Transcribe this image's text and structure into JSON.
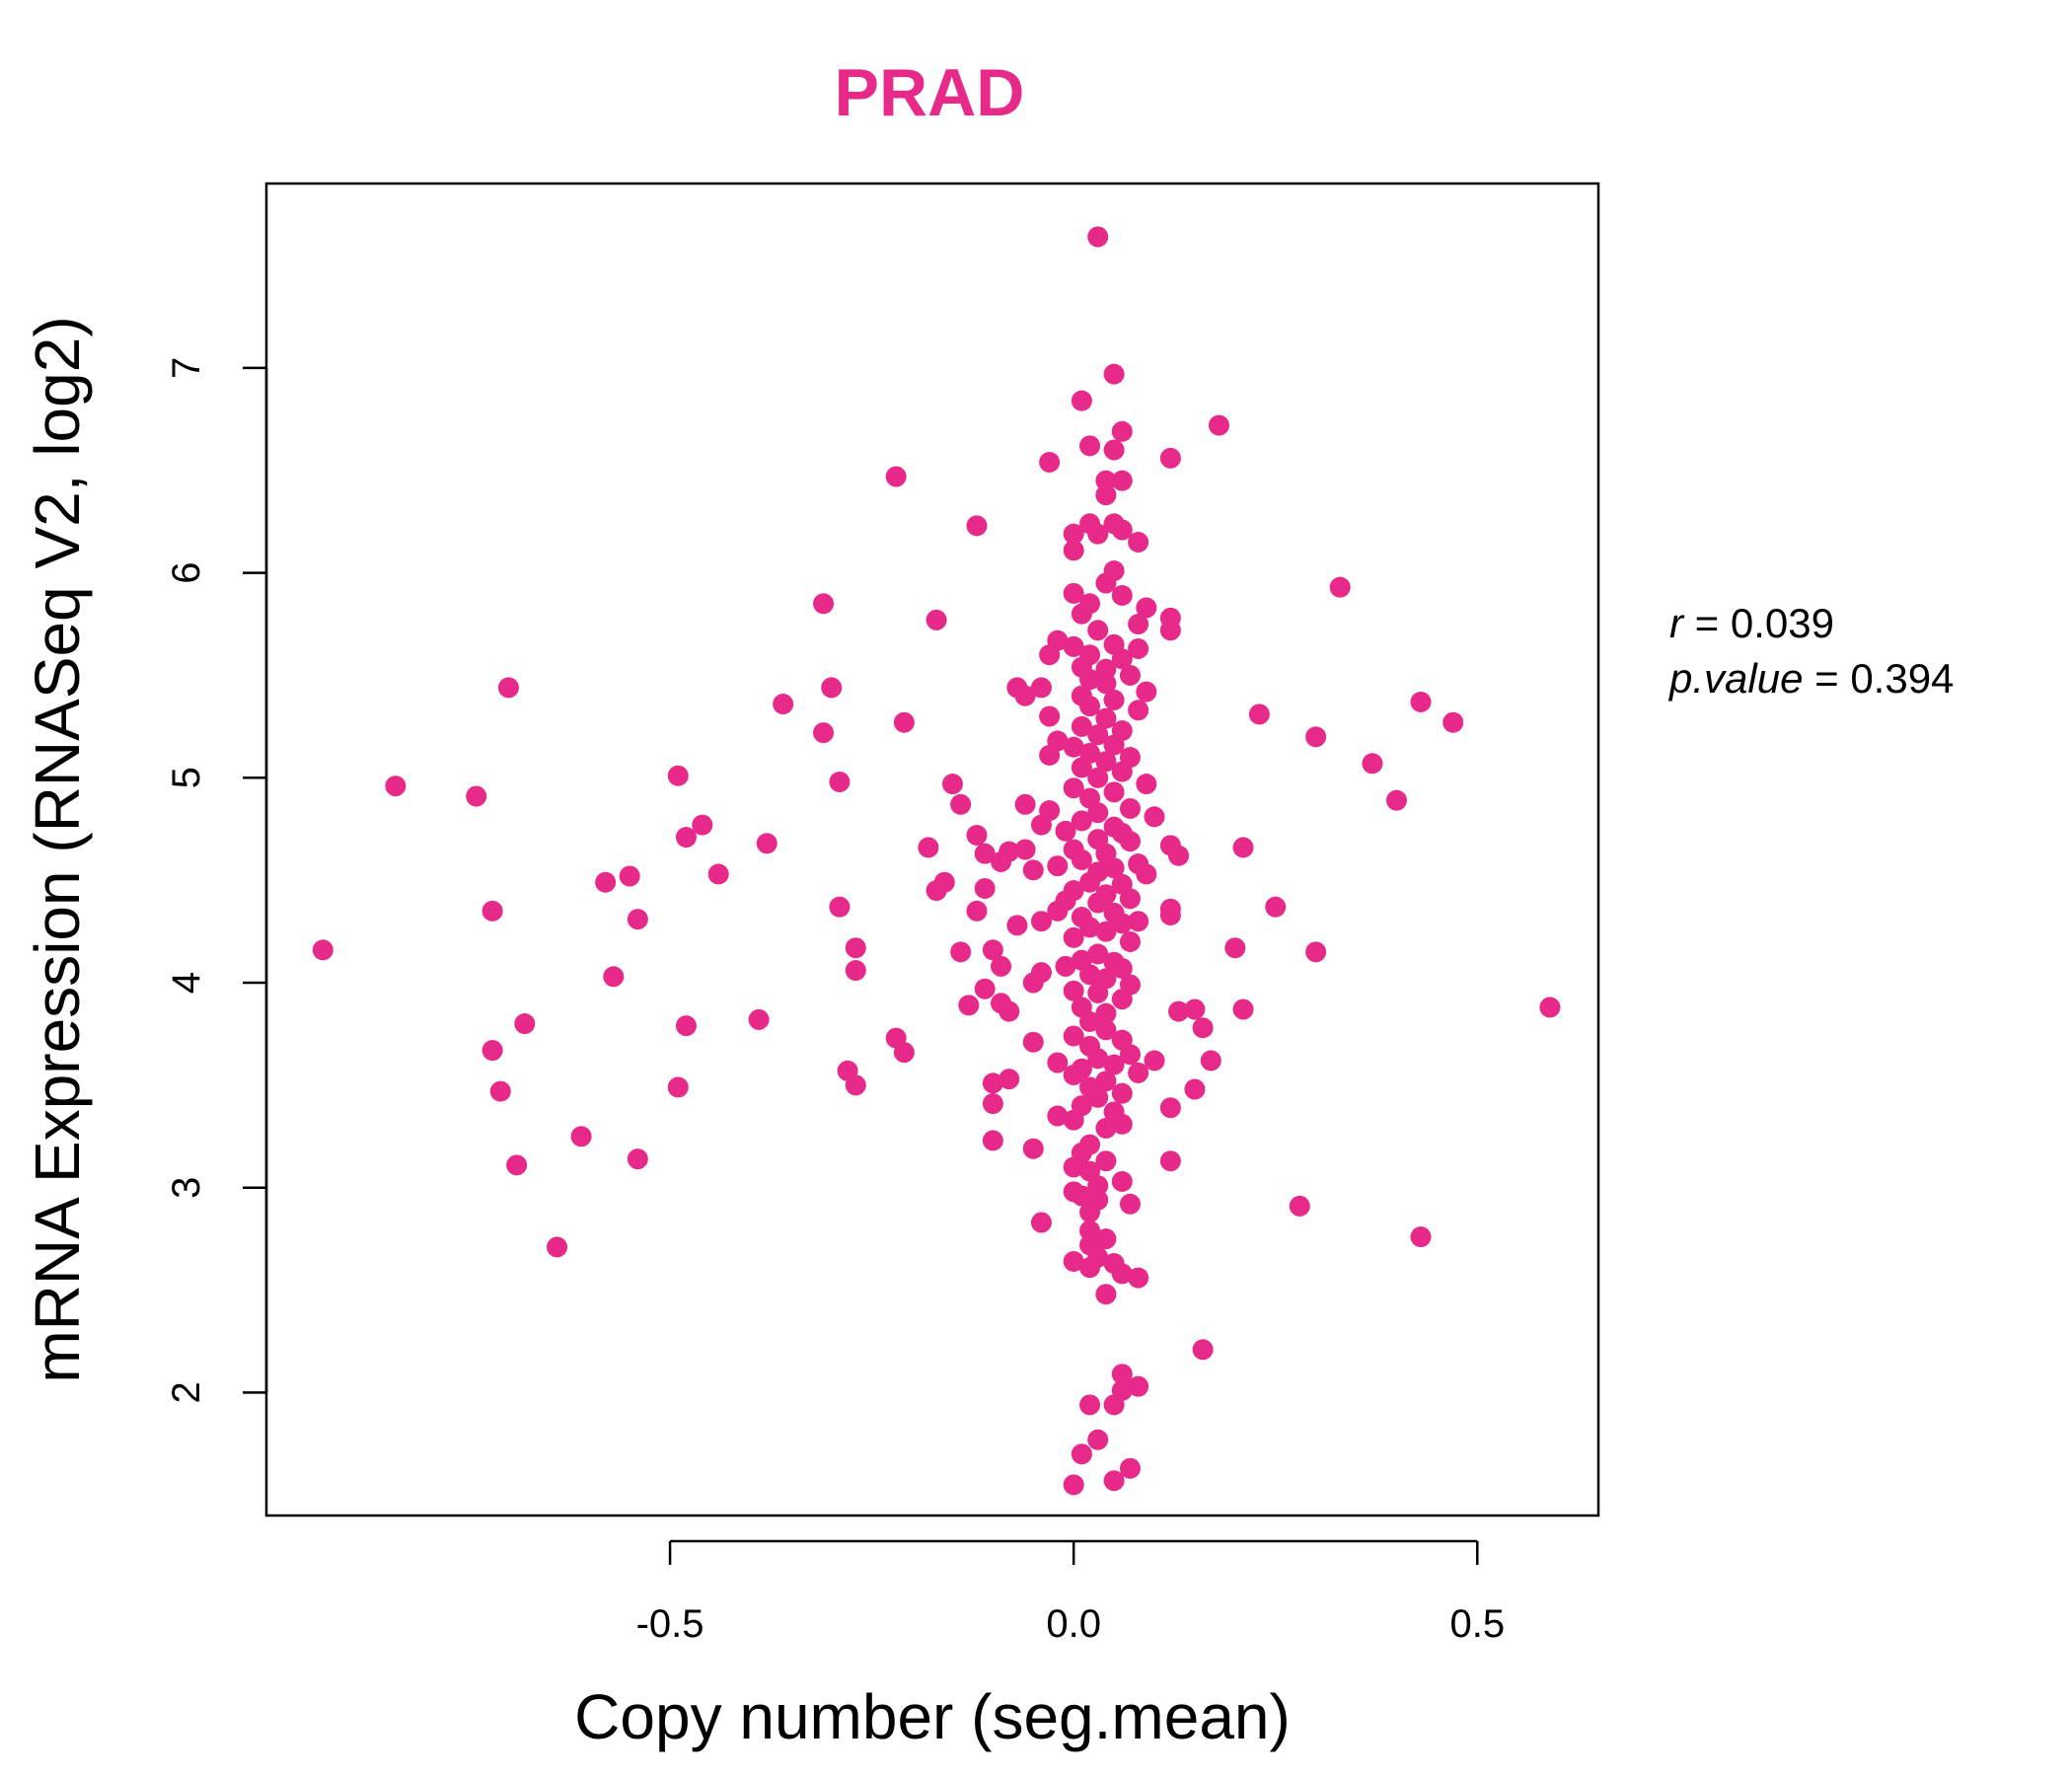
{
  "chart_data": {
    "type": "scatter",
    "title": "PRAD",
    "xlabel": "Copy number (seg.mean)",
    "ylabel": "mRNA Expression (RNASeq V2, log2)",
    "xlim": [
      -1.0,
      0.65
    ],
    "ylim": [
      1.4,
      7.9
    ],
    "x_ticks": [
      -0.5,
      0.0,
      0.5
    ],
    "x_tick_labels": [
      "-0.5",
      "0.0",
      "0.5"
    ],
    "y_ticks": [
      2,
      3,
      4,
      5,
      6,
      7
    ],
    "y_tick_labels": [
      "2",
      "3",
      "4",
      "5",
      "6",
      "7"
    ],
    "grid": false,
    "point_color": "#E7298A",
    "stats": {
      "r_label": "r",
      "r_value": "0.039",
      "p_label": "p.value",
      "p_value": "0.394"
    },
    "points": [
      {
        "x": 0.03,
        "y": 7.64
      },
      {
        "x": 0.05,
        "y": 6.97
      },
      {
        "x": 0.01,
        "y": 6.84
      },
      {
        "x": 0.06,
        "y": 6.69
      },
      {
        "x": 0.18,
        "y": 6.72
      },
      {
        "x": 0.02,
        "y": 6.62
      },
      {
        "x": 0.05,
        "y": 6.6
      },
      {
        "x": 0.12,
        "y": 6.56
      },
      {
        "x": -0.03,
        "y": 6.54
      },
      {
        "x": 0.04,
        "y": 6.45
      },
      {
        "x": 0.06,
        "y": 6.45
      },
      {
        "x": -0.22,
        "y": 6.47
      },
      {
        "x": 0.04,
        "y": 6.38
      },
      {
        "x": -0.12,
        "y": 6.23
      },
      {
        "x": 0.02,
        "y": 6.24
      },
      {
        "x": 0.05,
        "y": 6.24
      },
      {
        "x": 0.0,
        "y": 6.19
      },
      {
        "x": 0.03,
        "y": 6.19
      },
      {
        "x": 0.06,
        "y": 6.21
      },
      {
        "x": 0.08,
        "y": 6.15
      },
      {
        "x": 0.0,
        "y": 6.11
      },
      {
        "x": 0.05,
        "y": 6.01
      },
      {
        "x": 0.04,
        "y": 5.95
      },
      {
        "x": 0.33,
        "y": 5.93
      },
      {
        "x": 0.0,
        "y": 5.9
      },
      {
        "x": 0.06,
        "y": 5.89
      },
      {
        "x": 0.02,
        "y": 5.85
      },
      {
        "x": 0.09,
        "y": 5.83
      },
      {
        "x": -0.31,
        "y": 5.85
      },
      {
        "x": 0.01,
        "y": 5.8
      },
      {
        "x": -0.17,
        "y": 5.77
      },
      {
        "x": 0.12,
        "y": 5.78
      },
      {
        "x": 0.08,
        "y": 5.75
      },
      {
        "x": 0.03,
        "y": 5.72
      },
      {
        "x": 0.12,
        "y": 5.72
      },
      {
        "x": -0.02,
        "y": 5.67
      },
      {
        "x": 0.05,
        "y": 5.65
      },
      {
        "x": 0.0,
        "y": 5.64
      },
      {
        "x": 0.08,
        "y": 5.63
      },
      {
        "x": -0.03,
        "y": 5.6
      },
      {
        "x": 0.02,
        "y": 5.6
      },
      {
        "x": 0.06,
        "y": 5.58
      },
      {
        "x": 0.01,
        "y": 5.54
      },
      {
        "x": 0.04,
        "y": 5.53
      },
      {
        "x": 0.07,
        "y": 5.5
      },
      {
        "x": 0.02,
        "y": 5.48
      },
      {
        "x": 0.04,
        "y": 5.46
      },
      {
        "x": -0.07,
        "y": 5.44
      },
      {
        "x": -0.3,
        "y": 5.44
      },
      {
        "x": -0.7,
        "y": 5.44
      },
      {
        "x": -0.04,
        "y": 5.44
      },
      {
        "x": 0.09,
        "y": 5.42
      },
      {
        "x": -0.06,
        "y": 5.4
      },
      {
        "x": 0.01,
        "y": 5.4
      },
      {
        "x": 0.05,
        "y": 5.38
      },
      {
        "x": 0.43,
        "y": 5.37
      },
      {
        "x": -0.36,
        "y": 5.36
      },
      {
        "x": 0.02,
        "y": 5.35
      },
      {
        "x": 0.08,
        "y": 5.33
      },
      {
        "x": 0.23,
        "y": 5.31
      },
      {
        "x": -0.03,
        "y": 5.3
      },
      {
        "x": 0.04,
        "y": 5.29
      },
      {
        "x": 0.47,
        "y": 5.27
      },
      {
        "x": -0.21,
        "y": 5.27
      },
      {
        "x": 0.01,
        "y": 5.25
      },
      {
        "x": 0.06,
        "y": 5.23
      },
      {
        "x": -0.31,
        "y": 5.22
      },
      {
        "x": 0.03,
        "y": 5.21
      },
      {
        "x": 0.3,
        "y": 5.2
      },
      {
        "x": -0.02,
        "y": 5.18
      },
      {
        "x": 0.05,
        "y": 5.16
      },
      {
        "x": 0.0,
        "y": 5.15
      },
      {
        "x": 0.02,
        "y": 5.12
      },
      {
        "x": -0.03,
        "y": 5.11
      },
      {
        "x": 0.07,
        "y": 5.1
      },
      {
        "x": 0.04,
        "y": 5.08
      },
      {
        "x": 0.37,
        "y": 5.07
      },
      {
        "x": 0.01,
        "y": 5.05
      },
      {
        "x": 0.06,
        "y": 5.03
      },
      {
        "x": -0.49,
        "y": 5.01
      },
      {
        "x": 0.03,
        "y": 5.0
      },
      {
        "x": -0.29,
        "y": 4.98
      },
      {
        "x": 0.09,
        "y": 4.97
      },
      {
        "x": -0.15,
        "y": 4.97
      },
      {
        "x": -0.84,
        "y": 4.96
      },
      {
        "x": 0.0,
        "y": 4.95
      },
      {
        "x": 0.05,
        "y": 4.93
      },
      {
        "x": -0.74,
        "y": 4.91
      },
      {
        "x": 0.4,
        "y": 4.89
      },
      {
        "x": 0.02,
        "y": 4.9
      },
      {
        "x": -0.14,
        "y": 4.87
      },
      {
        "x": -0.06,
        "y": 4.87
      },
      {
        "x": 0.07,
        "y": 4.85
      },
      {
        "x": -0.03,
        "y": 4.84
      },
      {
        "x": 0.03,
        "y": 4.83
      },
      {
        "x": 0.1,
        "y": 4.81
      },
      {
        "x": 0.01,
        "y": 4.79
      },
      {
        "x": -0.46,
        "y": 4.77
      },
      {
        "x": -0.04,
        "y": 4.77
      },
      {
        "x": 0.05,
        "y": 4.76
      },
      {
        "x": -0.01,
        "y": 4.74
      },
      {
        "x": 0.06,
        "y": 4.73
      },
      {
        "x": -0.12,
        "y": 4.72
      },
      {
        "x": -0.48,
        "y": 4.71
      },
      {
        "x": 0.03,
        "y": 4.7
      },
      {
        "x": 0.07,
        "y": 4.69
      },
      {
        "x": -0.38,
        "y": 4.68
      },
      {
        "x": 0.12,
        "y": 4.67
      },
      {
        "x": 0.21,
        "y": 4.66
      },
      {
        "x": -0.18,
        "y": 4.66
      },
      {
        "x": -0.06,
        "y": 4.65
      },
      {
        "x": 0.0,
        "y": 4.65
      },
      {
        "x": -0.08,
        "y": 4.64
      },
      {
        "x": 0.04,
        "y": 4.63
      },
      {
        "x": -0.11,
        "y": 4.63
      },
      {
        "x": 0.13,
        "y": 4.62
      },
      {
        "x": 0.01,
        "y": 4.6
      },
      {
        "x": -0.09,
        "y": 4.59
      },
      {
        "x": 0.08,
        "y": 4.58
      },
      {
        "x": -0.02,
        "y": 4.57
      },
      {
        "x": 0.05,
        "y": 4.56
      },
      {
        "x": -0.05,
        "y": 4.55
      },
      {
        "x": 0.03,
        "y": 4.54
      },
      {
        "x": -0.44,
        "y": 4.53
      },
      {
        "x": 0.09,
        "y": 4.53
      },
      {
        "x": -0.55,
        "y": 4.52
      },
      {
        "x": -0.16,
        "y": 4.49
      },
      {
        "x": -0.58,
        "y": 4.49
      },
      {
        "x": 0.02,
        "y": 4.49
      },
      {
        "x": 0.06,
        "y": 4.48
      },
      {
        "x": -0.11,
        "y": 4.46
      },
      {
        "x": -0.17,
        "y": 4.45
      },
      {
        "x": 0.0,
        "y": 4.45
      },
      {
        "x": 0.04,
        "y": 4.43
      },
      {
        "x": 0.07,
        "y": 4.41
      },
      {
        "x": -0.01,
        "y": 4.4
      },
      {
        "x": 0.03,
        "y": 4.39
      },
      {
        "x": 0.25,
        "y": 4.37
      },
      {
        "x": 0.12,
        "y": 4.36
      },
      {
        "x": -0.02,
        "y": 4.35
      },
      {
        "x": -0.72,
        "y": 4.35
      },
      {
        "x": -0.12,
        "y": 4.35
      },
      {
        "x": 0.05,
        "y": 4.34
      },
      {
        "x": 0.12,
        "y": 4.33
      },
      {
        "x": 0.01,
        "y": 4.32
      },
      {
        "x": -0.54,
        "y": 4.31
      },
      {
        "x": 0.08,
        "y": 4.3
      },
      {
        "x": -0.04,
        "y": 4.3
      },
      {
        "x": 0.06,
        "y": 4.29
      },
      {
        "x": -0.07,
        "y": 4.28
      },
      {
        "x": 0.02,
        "y": 4.27
      },
      {
        "x": -0.29,
        "y": 4.37
      },
      {
        "x": 0.04,
        "y": 4.25
      },
      {
        "x": 0.0,
        "y": 4.22
      },
      {
        "x": 0.07,
        "y": 4.2
      },
      {
        "x": -0.27,
        "y": 4.17
      },
      {
        "x": 0.2,
        "y": 4.17
      },
      {
        "x": -0.1,
        "y": 4.16
      },
      {
        "x": -0.93,
        "y": 4.16
      },
      {
        "x": 0.3,
        "y": 4.15
      },
      {
        "x": -0.14,
        "y": 4.15
      },
      {
        "x": 0.03,
        "y": 4.14
      },
      {
        "x": 0.01,
        "y": 4.11
      },
      {
        "x": 0.05,
        "y": 4.1
      },
      {
        "x": -0.01,
        "y": 4.08
      },
      {
        "x": -0.09,
        "y": 4.08
      },
      {
        "x": 0.06,
        "y": 4.07
      },
      {
        "x": -0.27,
        "y": 4.06
      },
      {
        "x": -0.04,
        "y": 4.05
      },
      {
        "x": 0.02,
        "y": 4.04
      },
      {
        "x": -0.57,
        "y": 4.03
      },
      {
        "x": 0.04,
        "y": 4.02
      },
      {
        "x": -0.05,
        "y": 4.0
      },
      {
        "x": 0.07,
        "y": 3.99
      },
      {
        "x": -0.11,
        "y": 3.97
      },
      {
        "x": 0.0,
        "y": 3.96
      },
      {
        "x": 0.03,
        "y": 3.95
      },
      {
        "x": 0.06,
        "y": 3.92
      },
      {
        "x": -0.09,
        "y": 3.9
      },
      {
        "x": -0.13,
        "y": 3.89
      },
      {
        "x": 0.01,
        "y": 3.88
      },
      {
        "x": 0.59,
        "y": 3.88
      },
      {
        "x": 0.21,
        "y": 3.87
      },
      {
        "x": 0.15,
        "y": 3.87
      },
      {
        "x": 0.13,
        "y": 3.86
      },
      {
        "x": -0.08,
        "y": 3.86
      },
      {
        "x": 0.04,
        "y": 3.85
      },
      {
        "x": -0.39,
        "y": 3.82
      },
      {
        "x": 0.02,
        "y": 3.81
      },
      {
        "x": -0.68,
        "y": 3.8
      },
      {
        "x": -0.48,
        "y": 3.79
      },
      {
        "x": 0.16,
        "y": 3.78
      },
      {
        "x": 0.04,
        "y": 3.77
      },
      {
        "x": 0.0,
        "y": 3.74
      },
      {
        "x": -0.22,
        "y": 3.73
      },
      {
        "x": 0.06,
        "y": 3.72
      },
      {
        "x": -0.05,
        "y": 3.71
      },
      {
        "x": 0.02,
        "y": 3.69
      },
      {
        "x": -0.72,
        "y": 3.67
      },
      {
        "x": -0.21,
        "y": 3.66
      },
      {
        "x": 0.07,
        "y": 3.65
      },
      {
        "x": 0.03,
        "y": 3.63
      },
      {
        "x": 0.17,
        "y": 3.62
      },
      {
        "x": 0.1,
        "y": 3.62
      },
      {
        "x": -0.02,
        "y": 3.61
      },
      {
        "x": 0.05,
        "y": 3.6
      },
      {
        "x": 0.01,
        "y": 3.58
      },
      {
        "x": -0.28,
        "y": 3.57
      },
      {
        "x": 0.08,
        "y": 3.56
      },
      {
        "x": 0.0,
        "y": 3.55
      },
      {
        "x": -0.08,
        "y": 3.53
      },
      {
        "x": 0.04,
        "y": 3.52
      },
      {
        "x": -0.1,
        "y": 3.51
      },
      {
        "x": -0.27,
        "y": 3.5
      },
      {
        "x": 0.02,
        "y": 3.49
      },
      {
        "x": -0.71,
        "y": 3.47
      },
      {
        "x": -0.49,
        "y": 3.49
      },
      {
        "x": 0.15,
        "y": 3.48
      },
      {
        "x": 0.06,
        "y": 3.46
      },
      {
        "x": 0.03,
        "y": 3.44
      },
      {
        "x": -0.1,
        "y": 3.41
      },
      {
        "x": 0.01,
        "y": 3.4
      },
      {
        "x": 0.12,
        "y": 3.39
      },
      {
        "x": 0.05,
        "y": 3.37
      },
      {
        "x": -0.02,
        "y": 3.35
      },
      {
        "x": 0.0,
        "y": 3.33
      },
      {
        "x": 0.06,
        "y": 3.31
      },
      {
        "x": 0.04,
        "y": 3.29
      },
      {
        "x": -0.61,
        "y": 3.25
      },
      {
        "x": -0.1,
        "y": 3.23
      },
      {
        "x": 0.02,
        "y": 3.21
      },
      {
        "x": -0.05,
        "y": 3.19
      },
      {
        "x": 0.01,
        "y": 3.17
      },
      {
        "x": -0.54,
        "y": 3.14
      },
      {
        "x": 0.12,
        "y": 3.13
      },
      {
        "x": 0.04,
        "y": 3.13
      },
      {
        "x": -0.69,
        "y": 3.11
      },
      {
        "x": 0.0,
        "y": 3.1
      },
      {
        "x": 0.02,
        "y": 3.08
      },
      {
        "x": 0.06,
        "y": 3.03
      },
      {
        "x": 0.03,
        "y": 3.01
      },
      {
        "x": 0.0,
        "y": 2.98
      },
      {
        "x": 0.01,
        "y": 2.96
      },
      {
        "x": 0.03,
        "y": 2.94
      },
      {
        "x": 0.07,
        "y": 2.92
      },
      {
        "x": 0.28,
        "y": 2.91
      },
      {
        "x": 0.02,
        "y": 2.88
      },
      {
        "x": -0.04,
        "y": 2.83
      },
      {
        "x": 0.02,
        "y": 2.79
      },
      {
        "x": 0.43,
        "y": 2.76
      },
      {
        "x": 0.04,
        "y": 2.75
      },
      {
        "x": 0.02,
        "y": 2.72
      },
      {
        "x": -0.64,
        "y": 2.71
      },
      {
        "x": 0.03,
        "y": 2.66
      },
      {
        "x": 0.0,
        "y": 2.64
      },
      {
        "x": 0.05,
        "y": 2.63
      },
      {
        "x": 0.02,
        "y": 2.61
      },
      {
        "x": 0.06,
        "y": 2.58
      },
      {
        "x": 0.08,
        "y": 2.56
      },
      {
        "x": 0.04,
        "y": 2.48
      },
      {
        "x": 0.16,
        "y": 2.21
      },
      {
        "x": 0.06,
        "y": 2.09
      },
      {
        "x": 0.08,
        "y": 2.03
      },
      {
        "x": 0.06,
        "y": 2.01
      },
      {
        "x": 0.02,
        "y": 1.94
      },
      {
        "x": 0.05,
        "y": 1.94
      },
      {
        "x": 0.03,
        "y": 1.77
      },
      {
        "x": 0.01,
        "y": 1.7
      },
      {
        "x": 0.07,
        "y": 1.63
      },
      {
        "x": 0.05,
        "y": 1.57
      },
      {
        "x": 0.0,
        "y": 1.55
      }
    ]
  }
}
